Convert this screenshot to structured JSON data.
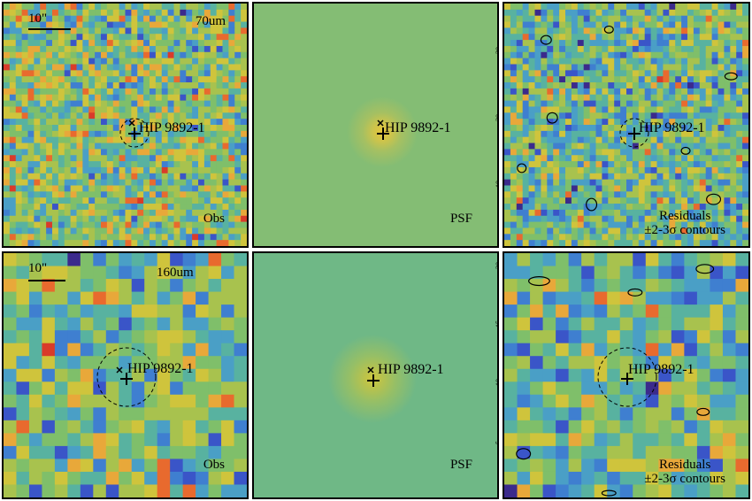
{
  "figure": {
    "rows": [
      {
        "band": "70um",
        "scale_label": "10\"",
        "panels": [
          {
            "kind": "obs",
            "source_label": "HIP 9892-1",
            "corner_label": "Obs",
            "band_label": "70um"
          },
          {
            "kind": "psf",
            "source_label": "HIP 9892-1",
            "corner_label": "PSF",
            "ticks": [
              "30",
              "20",
              "10"
            ]
          },
          {
            "kind": "resid",
            "source_label": "HIP 9892-1",
            "corner_label_1": "Residuals",
            "corner_label_2": "±2-3σ contours"
          }
        ]
      },
      {
        "band": "160um",
        "scale_label": "10\"",
        "panels": [
          {
            "kind": "obs",
            "source_label": "HIP 9892-1",
            "corner_label": "Obs",
            "band_label": "160um"
          },
          {
            "kind": "psf",
            "source_label": "HIP 9892-1",
            "corner_label": "PSF",
            "ticks": [
              "20",
              "15",
              "10",
              "5"
            ]
          },
          {
            "kind": "resid",
            "source_label": "HIP 9892-1",
            "corner_label_1": "Residuals",
            "corner_label_2": "±2-3σ contours"
          }
        ]
      }
    ],
    "colors": {
      "background": "#7ab87e",
      "psf_background_70": "#84bd74",
      "psf_background_160": "#6fb886",
      "psf_peak": "#e6c53a"
    }
  }
}
